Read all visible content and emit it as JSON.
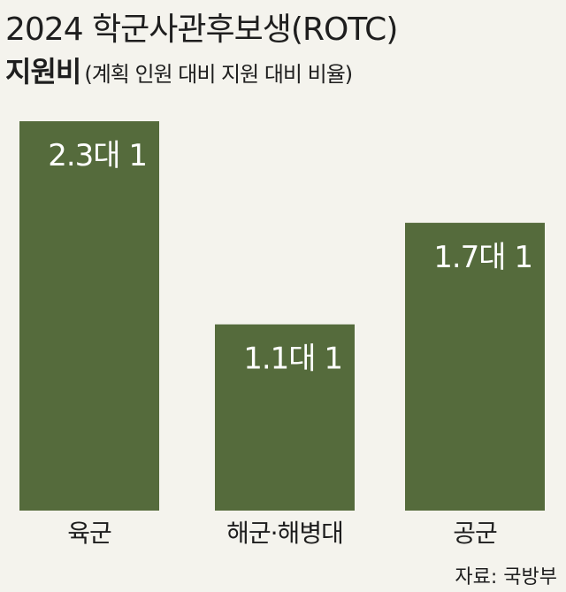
{
  "title_line1": "2024 학군사관후보생(ROTC)",
  "title_main": "지원비",
  "title_sub": "(계획 인원 대비 지원 대비 비율)",
  "source": "자료: 국방부",
  "colors": {
    "bar": "#556b3c",
    "background": "#f4f3ed",
    "text": "#1e1e1e"
  },
  "chart_data": {
    "type": "bar",
    "title": "2024 학군사관후보생(ROTC) 지원비",
    "subtitle": "(계획 인원 대비 지원 대비 비율)",
    "categories": [
      "육군",
      "해군·해병대",
      "공군"
    ],
    "values": [
      2.3,
      1.1,
      1.7
    ],
    "data_labels": [
      "2.3대 1",
      "1.1대 1",
      "1.7대 1"
    ],
    "xlabel": "",
    "ylabel": "",
    "ylim": [
      0,
      2.3
    ],
    "grid": false,
    "legend": "none"
  }
}
